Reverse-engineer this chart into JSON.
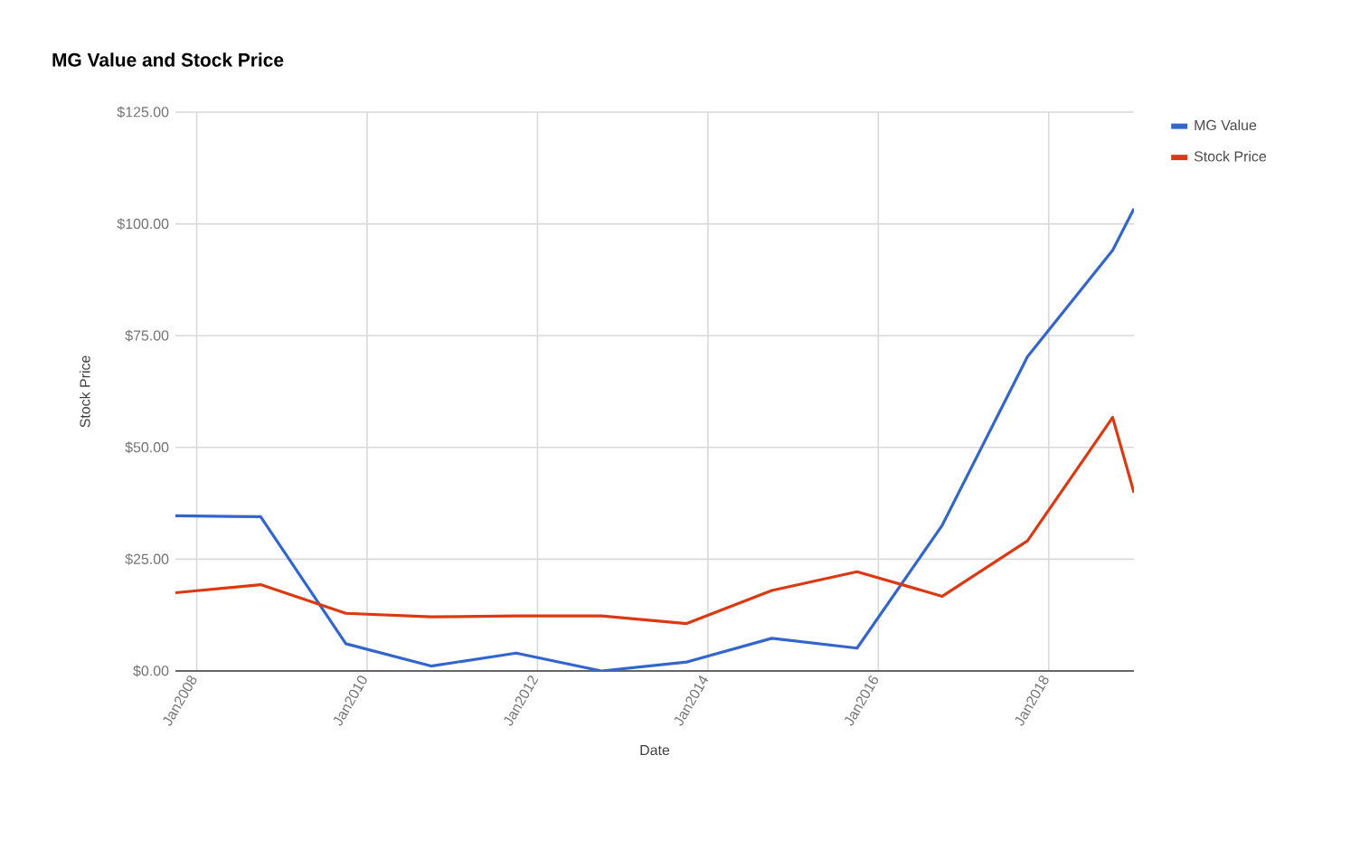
{
  "chart_data": {
    "type": "line",
    "title": "MG Value and Stock Price",
    "xlabel": "Date",
    "ylabel": "Stock Price",
    "x": [
      "2007-10",
      "2008-10",
      "2009-10",
      "2010-10",
      "2011-10",
      "2012-10",
      "2013-10",
      "2014-10",
      "2015-10",
      "2016-10",
      "2017-10",
      "2018-10",
      "2019-01"
    ],
    "series": [
      {
        "name": "MG Value",
        "color": "#3366cc",
        "values": [
          34.7,
          34.5,
          6.1,
          1.1,
          4.0,
          0.0,
          2.0,
          7.3,
          5.1,
          32.6,
          70.3,
          94.1,
          103.4
        ]
      },
      {
        "name": "Stock Price",
        "color": "#dc3912",
        "values": [
          17.5,
          19.3,
          12.9,
          12.1,
          12.3,
          12.3,
          10.6,
          18.0,
          22.2,
          16.7,
          29.1,
          56.7,
          39.9
        ]
      }
    ],
    "xlim": [
      "2007-10",
      "2019-01"
    ],
    "xticks": [
      {
        "value": "2008-01",
        "label": "Jan2008"
      },
      {
        "value": "2010-01",
        "label": "Jan2010"
      },
      {
        "value": "2012-01",
        "label": "Jan2012"
      },
      {
        "value": "2014-01",
        "label": "Jan2014"
      },
      {
        "value": "2016-01",
        "label": "Jan2016"
      },
      {
        "value": "2018-01",
        "label": "Jan2018"
      }
    ],
    "ylim": [
      0,
      125
    ],
    "yticks": [
      {
        "value": 0,
        "label": "$0.00"
      },
      {
        "value": 25,
        "label": "$25.00"
      },
      {
        "value": 50,
        "label": "$50.00"
      },
      {
        "value": 75,
        "label": "$75.00"
      },
      {
        "value": 100,
        "label": "$100.00"
      },
      {
        "value": 125,
        "label": "$125.00"
      }
    ],
    "grid": true,
    "legend": "top right",
    "marker": "none",
    "line_style": "solid"
  }
}
